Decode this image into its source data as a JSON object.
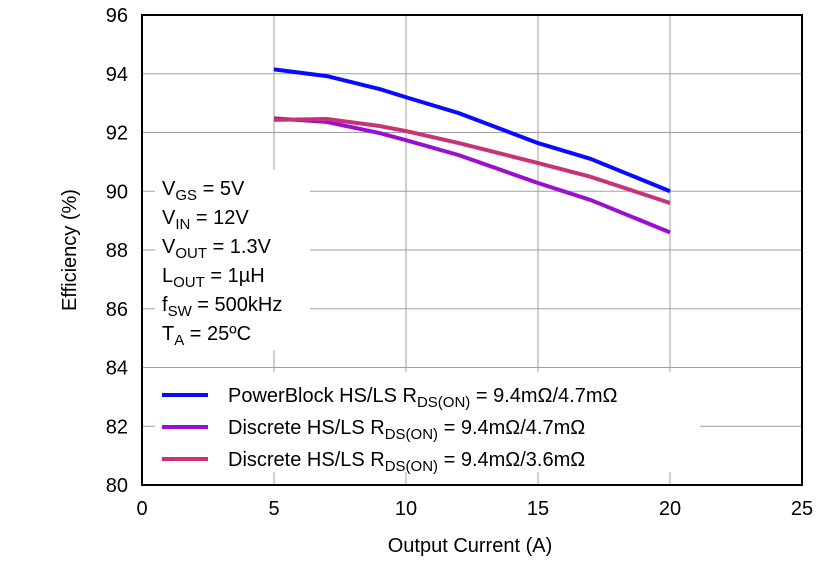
{
  "chart_data": {
    "type": "line",
    "xlabel": "Output Current (A)",
    "ylabel": "Efficiency (%)",
    "xlim": [
      0,
      25
    ],
    "xticks": [
      0,
      5,
      10,
      15,
      20,
      25
    ],
    "ylim": [
      80,
      96
    ],
    "yticks": [
      80,
      82,
      84,
      86,
      88,
      90,
      92,
      94,
      96
    ],
    "grid": true,
    "x": [
      5,
      7,
      9,
      10,
      12,
      15,
      17,
      20
    ],
    "series": [
      {
        "name": [
          "PowerBlock  HS/LS R",
          "DS(ON)",
          " = 9.4mΩ/4.7mΩ"
        ],
        "color": "#0a0aff",
        "values": [
          94.15,
          93.92,
          93.48,
          93.2,
          92.66,
          91.64,
          91.1,
          90.0
        ]
      },
      {
        "name": [
          "Discrete  HS/LS R",
          "DS(ON)",
          " = 9.4mΩ/4.7mΩ"
        ],
        "color": "#9a0fd0",
        "values": [
          92.48,
          92.36,
          91.98,
          91.74,
          91.23,
          90.28,
          89.7,
          88.6
        ]
      },
      {
        "name": [
          "Discrete  HS/LS R",
          "DS(ON)",
          " = 9.4mΩ/3.6mΩ"
        ],
        "color": "#c83278",
        "values": [
          92.43,
          92.46,
          92.22,
          92.05,
          91.64,
          90.96,
          90.49,
          89.6
        ]
      }
    ],
    "annotations": [
      [
        "V",
        "GS",
        " = 5V"
      ],
      [
        "V",
        "IN",
        " = 12V"
      ],
      [
        "V",
        "OUT",
        " = 1.3V"
      ],
      [
        "L",
        "OUT",
        " = 1µH"
      ],
      [
        "f",
        "SW",
        " = 500kHz"
      ],
      [
        "T",
        "A",
        " = 25ºC"
      ]
    ]
  }
}
